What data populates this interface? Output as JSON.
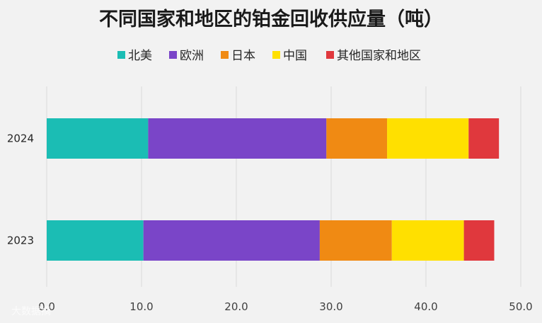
{
  "watermark": "大数据摘",
  "chart_data": {
    "type": "bar",
    "orientation": "horizontal",
    "stacked": true,
    "title": "不同国家和地区的铂金回收供应量（吨）",
    "legend_position": "top",
    "grid": true,
    "categories": [
      "2024",
      "2023"
    ],
    "series": [
      {
        "name": "北美",
        "color": "#1bbdb4",
        "values": [
          10.7,
          10.2
        ]
      },
      {
        "name": "欧洲",
        "color": "#7a45c8",
        "values": [
          18.8,
          18.6
        ]
      },
      {
        "name": "日本",
        "color": "#f08a13",
        "values": [
          6.4,
          7.6
        ]
      },
      {
        "name": "中国",
        "color": "#ffe000",
        "values": [
          8.6,
          7.6
        ]
      },
      {
        "name": "其他国家和地区",
        "color": "#e0383d",
        "values": [
          3.2,
          3.2
        ]
      }
    ],
    "xlim": [
      0,
      50
    ],
    "xticks": [
      "0.0",
      "10.0",
      "20.0",
      "30.0",
      "40.0",
      "50.0"
    ]
  }
}
